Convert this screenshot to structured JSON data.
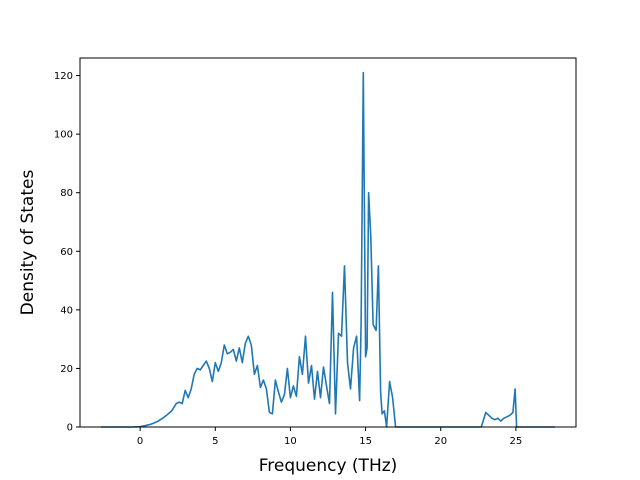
{
  "chart_data": {
    "type": "line",
    "title": "",
    "xlabel": "Frequency (THz)",
    "ylabel": "Density of States",
    "xlim": [
      -4.0,
      29.0
    ],
    "ylim": [
      0,
      126
    ],
    "x_ticks": [
      0,
      5,
      10,
      15,
      20,
      25
    ],
    "y_ticks": [
      0,
      20,
      40,
      60,
      80,
      100,
      120
    ],
    "grid": false,
    "legend": "none",
    "colors": {
      "line": "#1f77b4",
      "axes": "#000000",
      "background": "#ffffff"
    },
    "series": [
      {
        "x": [
          -2.6,
          -1.5,
          -0.5,
          0.0,
          0.3,
          0.6,
          0.9,
          1.2,
          1.5,
          1.8,
          2.1,
          2.4,
          2.6,
          2.8,
          3.0,
          3.2,
          3.4,
          3.6,
          3.8,
          4.0,
          4.2,
          4.4,
          4.6,
          4.8,
          5.0,
          5.2,
          5.4,
          5.6,
          5.8,
          6.0,
          6.2,
          6.4,
          6.6,
          6.8,
          7.0,
          7.2,
          7.4,
          7.6,
          7.8,
          8.0,
          8.2,
          8.4,
          8.6,
          8.8,
          9.0,
          9.2,
          9.4,
          9.6,
          9.8,
          10.0,
          10.2,
          10.4,
          10.6,
          10.8,
          11.0,
          11.2,
          11.4,
          11.6,
          11.8,
          12.0,
          12.2,
          12.4,
          12.6,
          12.8,
          13.0,
          13.2,
          13.4,
          13.6,
          13.8,
          14.0,
          14.2,
          14.4,
          14.6,
          14.7,
          14.85,
          15.0,
          15.1,
          15.2,
          15.35,
          15.5,
          15.7,
          15.85,
          16.0,
          16.1,
          16.25,
          16.4,
          16.6,
          16.8,
          17.0,
          17.5,
          18.0,
          19.0,
          20.0,
          21.0,
          22.0,
          22.7,
          23.0,
          23.2,
          23.4,
          23.6,
          23.8,
          24.0,
          24.2,
          24.4,
          24.6,
          24.8,
          24.95,
          25.05,
          25.2,
          25.5,
          26.0,
          27.0,
          27.6
        ],
        "y": [
          0,
          0,
          0,
          0.1,
          0.4,
          0.8,
          1.3,
          2.0,
          3.0,
          4.2,
          5.5,
          8.0,
          8.5,
          8.0,
          12.5,
          10.0,
          13.0,
          18.0,
          20.0,
          19.5,
          21.0,
          22.5,
          20.0,
          15.5,
          22.0,
          19.0,
          22.0,
          28.0,
          25.0,
          25.5,
          26.5,
          22.5,
          27.0,
          22.0,
          28.5,
          31.0,
          28.0,
          18.0,
          21.0,
          13.5,
          16.0,
          13.0,
          5.0,
          4.5,
          16.0,
          12.0,
          8.5,
          11.0,
          20.0,
          10.0,
          14.0,
          10.5,
          24.0,
          18.0,
          31.0,
          15.0,
          21.0,
          9.5,
          19.0,
          10.0,
          20.5,
          14.0,
          8.0,
          46.0,
          4.5,
          32.0,
          31.0,
          55.0,
          22.0,
          13.0,
          27.0,
          31.0,
          9.0,
          35.0,
          121.0,
          24.0,
          27.0,
          80.0,
          65.0,
          35.0,
          33.0,
          55.0,
          12.0,
          4.5,
          5.5,
          0,
          15.5,
          10.0,
          0,
          0,
          0,
          0,
          0,
          0,
          0,
          0,
          5.0,
          4.0,
          3.0,
          2.5,
          3.0,
          2.0,
          3.0,
          3.5,
          4.0,
          5.0,
          13.0,
          0,
          0,
          0,
          0,
          0,
          0
        ]
      }
    ]
  }
}
